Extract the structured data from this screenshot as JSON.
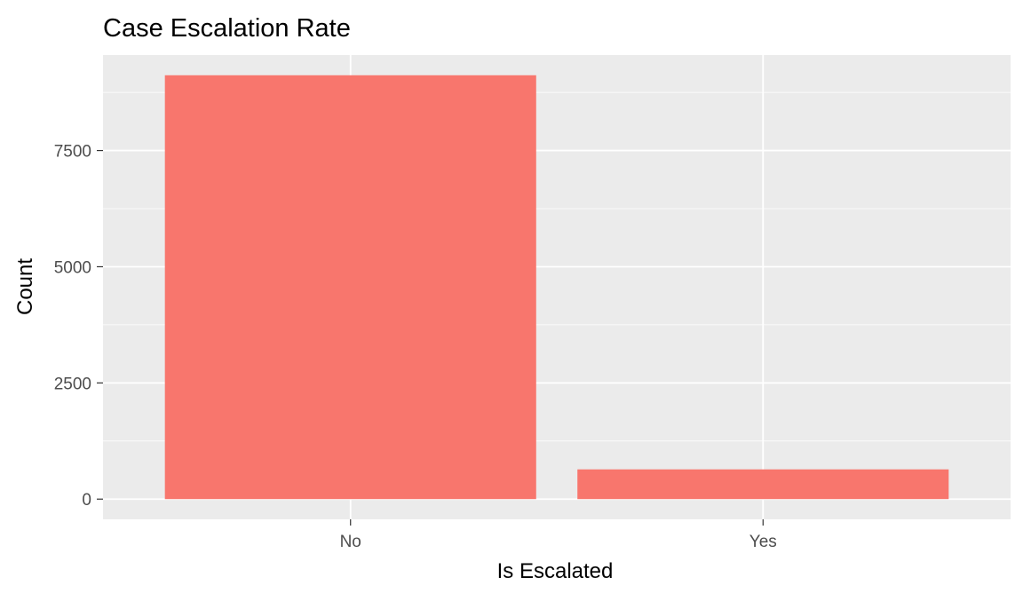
{
  "chart_data": {
    "type": "bar",
    "title": "Case Escalation Rate",
    "xlabel": "Is Escalated",
    "ylabel": "Count",
    "categories": [
      "No",
      "Yes"
    ],
    "values": [
      9120,
      640
    ],
    "ylim": [
      -435,
      9555
    ],
    "yticks": [
      0,
      2500,
      5000,
      7500
    ],
    "ytick_labels": [
      "0",
      "2500",
      "5000",
      "7500"
    ],
    "grid": true,
    "legend": "none",
    "colors": {
      "bar": "#F8766D",
      "panel": "#EBEBEB",
      "grid": "#FFFFFF",
      "axis_text": "#4D4D4D",
      "title": "#000000"
    }
  }
}
